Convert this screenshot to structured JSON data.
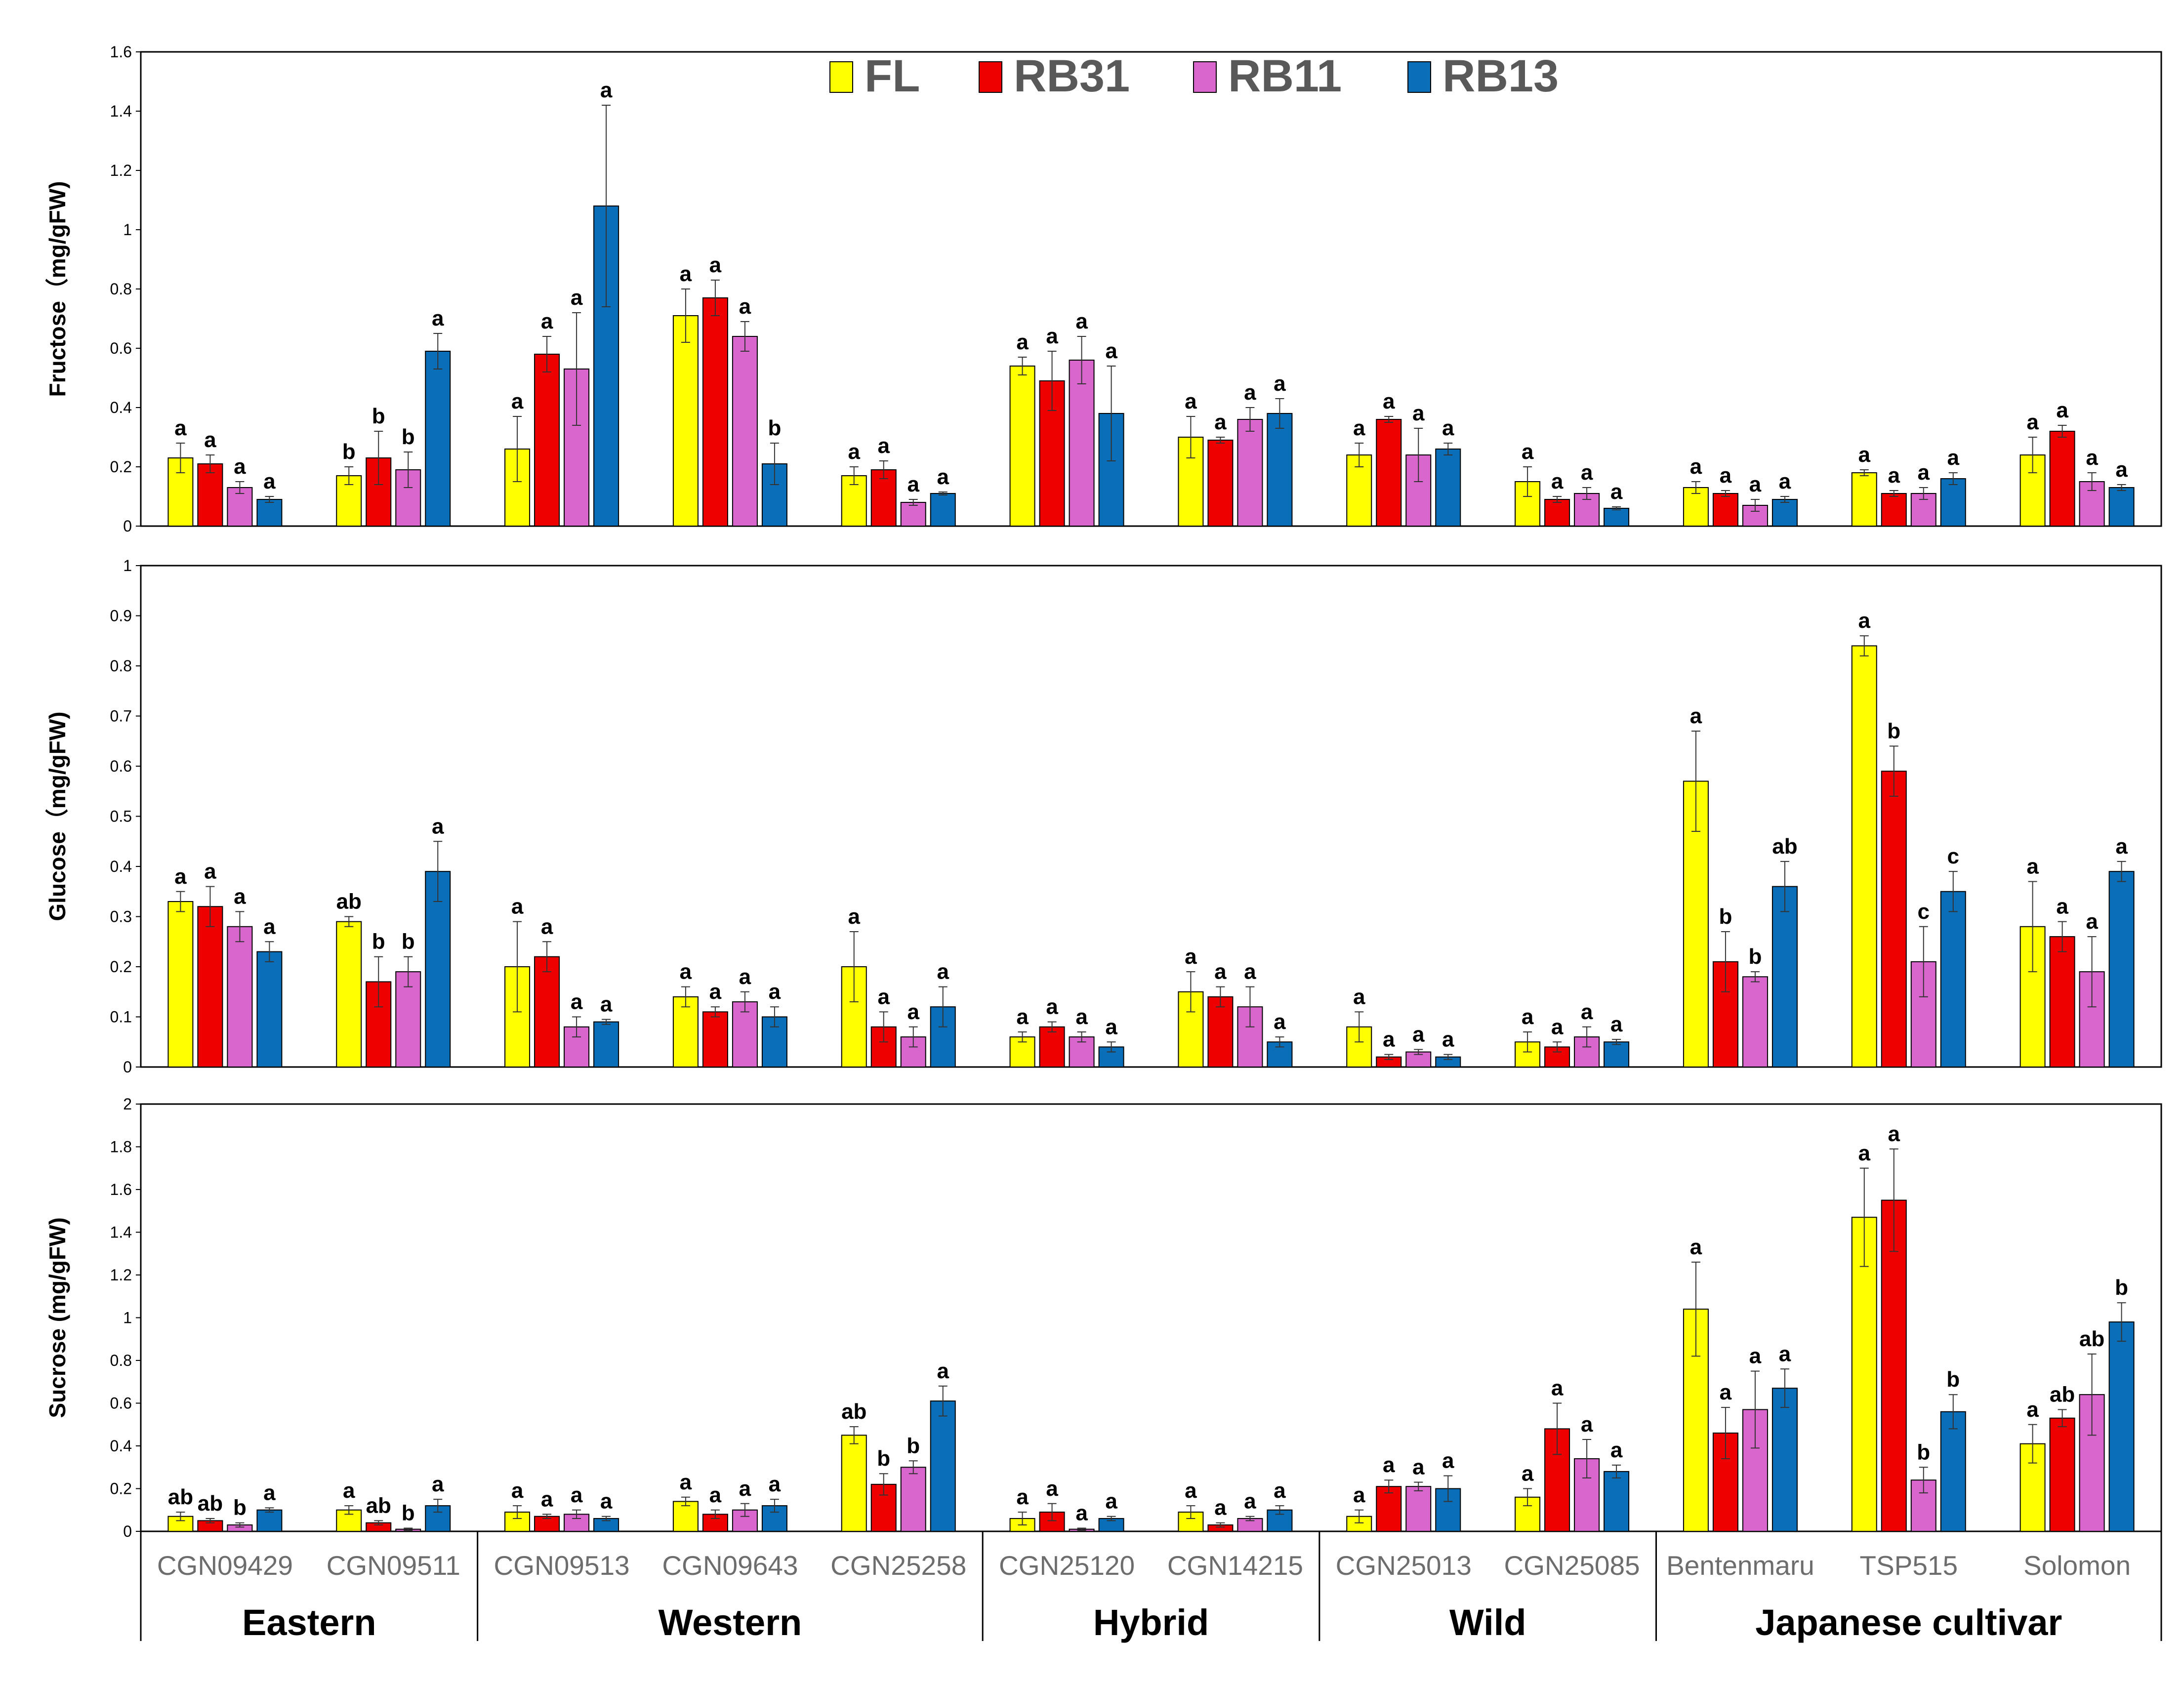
{
  "chart_data": {
    "type": "bar",
    "categories": [
      "CGN09429",
      "CGN09511",
      "CGN09513",
      "CGN09643",
      "CGN25258",
      "CGN25120",
      "CGN14215",
      "CGN25013",
      "CGN25085",
      "Bentenmaru",
      "TSP515",
      "Solomon"
    ],
    "groups": [
      {
        "label": "Eastern",
        "categories": [
          0,
          1
        ]
      },
      {
        "label": "Western",
        "categories": [
          2,
          3,
          4
        ]
      },
      {
        "label": "Hybrid",
        "categories": [
          5,
          6
        ]
      },
      {
        "label": "Wild",
        "categories": [
          7,
          8
        ]
      },
      {
        "label": "Japanese cultivar",
        "categories": [
          9,
          10,
          11
        ]
      }
    ],
    "legend": {
      "placement": "top-center",
      "entries": [
        "FL",
        "RB31",
        "RB11",
        "RB13"
      ]
    },
    "colors": {
      "FL": "#ffff00",
      "RB31": "#ee0000",
      "RB11": "#d966cc",
      "RB13": "#0a6eb8"
    },
    "grid": false,
    "panels": [
      {
        "ylabel": "Fructose（mg/gFW)",
        "ylim": [
          0,
          1.6
        ],
        "yticks": [
          "0",
          "0.2",
          "0.4",
          "0.6",
          "0.8",
          "1",
          "1.2",
          "1.4",
          "1.6"
        ],
        "series": [
          {
            "name": "FL",
            "values": [
              0.23,
              0.17,
              0.26,
              0.71,
              0.17,
              0.54,
              0.3,
              0.24,
              0.15,
              0.13,
              0.18,
              0.24
            ],
            "errors": [
              0.05,
              0.03,
              0.11,
              0.09,
              0.03,
              0.03,
              0.07,
              0.04,
              0.05,
              0.02,
              0.01,
              0.06
            ],
            "letters": [
              "a",
              "b",
              "a",
              "a",
              "a",
              "a",
              "a",
              "a",
              "a",
              "a",
              "a",
              "a"
            ]
          },
          {
            "name": "RB31",
            "values": [
              0.21,
              0.23,
              0.58,
              0.77,
              0.19,
              0.49,
              0.29,
              0.36,
              0.09,
              0.11,
              0.11,
              0.32
            ],
            "errors": [
              0.03,
              0.09,
              0.06,
              0.06,
              0.03,
              0.1,
              0.01,
              0.01,
              0.01,
              0.01,
              0.01,
              0.02
            ],
            "letters": [
              "a",
              "b",
              "a",
              "a",
              "a",
              "a",
              "a",
              "a",
              "a",
              "a",
              "a",
              "a"
            ]
          },
          {
            "name": "RB11",
            "values": [
              0.13,
              0.19,
              0.53,
              0.64,
              0.08,
              0.56,
              0.36,
              0.24,
              0.11,
              0.07,
              0.11,
              0.15
            ],
            "errors": [
              0.02,
              0.06,
              0.19,
              0.05,
              0.01,
              0.08,
              0.04,
              0.09,
              0.02,
              0.02,
              0.02,
              0.03
            ],
            "letters": [
              "a",
              "b",
              "a",
              "a",
              "a",
              "a",
              "a",
              "a",
              "a",
              "a",
              "a",
              "a"
            ]
          },
          {
            "name": "RB13",
            "values": [
              0.09,
              0.59,
              1.08,
              0.21,
              0.11,
              0.38,
              0.38,
              0.26,
              0.06,
              0.09,
              0.16,
              0.13
            ],
            "errors": [
              0.01,
              0.06,
              0.34,
              0.07,
              0.005,
              0.16,
              0.05,
              0.02,
              0.005,
              0.01,
              0.02,
              0.01
            ],
            "letters": [
              "a",
              "a",
              "a",
              "b",
              "a",
              "a",
              "a",
              "a",
              "a",
              "a",
              "a",
              "a"
            ]
          }
        ]
      },
      {
        "ylabel": "Glucose（mg/gFW)",
        "ylim": [
          0,
          1
        ],
        "yticks": [
          "0",
          "0.1",
          "0.2",
          "0.3",
          "0.4",
          "0.5",
          "0.6",
          "0.7",
          "0.8",
          "0.9",
          "1"
        ],
        "series": [
          {
            "name": "FL",
            "values": [
              0.33,
              0.29,
              0.2,
              0.14,
              0.2,
              0.06,
              0.15,
              0.08,
              0.05,
              0.57,
              0.84,
              0.28
            ],
            "errors": [
              0.02,
              0.01,
              0.09,
              0.02,
              0.07,
              0.01,
              0.04,
              0.03,
              0.02,
              0.1,
              0.02,
              0.09
            ],
            "letters": [
              "a",
              "ab",
              "a",
              "a",
              "a",
              "a",
              "a",
              "a",
              "a",
              "a",
              "a",
              "a"
            ]
          },
          {
            "name": "RB31",
            "values": [
              0.32,
              0.17,
              0.22,
              0.11,
              0.08,
              0.08,
              0.14,
              0.02,
              0.04,
              0.21,
              0.59,
              0.26
            ],
            "errors": [
              0.04,
              0.05,
              0.03,
              0.01,
              0.03,
              0.01,
              0.02,
              0.005,
              0.01,
              0.06,
              0.05,
              0.03
            ],
            "letters": [
              "a",
              "b",
              "a",
              "a",
              "a",
              "a",
              "a",
              "a",
              "a",
              "b",
              "b",
              "a"
            ]
          },
          {
            "name": "RB11",
            "values": [
              0.28,
              0.19,
              0.08,
              0.13,
              0.06,
              0.06,
              0.12,
              0.03,
              0.06,
              0.18,
              0.21,
              0.19
            ],
            "errors": [
              0.03,
              0.03,
              0.02,
              0.02,
              0.02,
              0.01,
              0.04,
              0.005,
              0.02,
              0.01,
              0.07,
              0.07
            ],
            "letters": [
              "a",
              "b",
              "a",
              "a",
              "a",
              "a",
              "a",
              "a",
              "a",
              "b",
              "c",
              "a"
            ]
          },
          {
            "name": "RB13",
            "values": [
              0.23,
              0.39,
              0.09,
              0.1,
              0.12,
              0.04,
              0.05,
              0.02,
              0.05,
              0.36,
              0.35,
              0.39
            ],
            "errors": [
              0.02,
              0.06,
              0.005,
              0.02,
              0.04,
              0.01,
              0.01,
              0.005,
              0.005,
              0.05,
              0.04,
              0.02
            ],
            "letters": [
              "a",
              "a",
              "a",
              "a",
              "a",
              "a",
              "a",
              "a",
              "a",
              "ab",
              "c",
              "a"
            ]
          }
        ]
      },
      {
        "ylabel": "Sucrose (mg/gFW)",
        "ylim": [
          0,
          2
        ],
        "yticks": [
          "0",
          "0.2",
          "0.4",
          "0.6",
          "0.8",
          "1",
          "1.2",
          "1.4",
          "1.6",
          "1.8",
          "2"
        ],
        "series": [
          {
            "name": "FL",
            "values": [
              0.07,
              0.1,
              0.09,
              0.14,
              0.45,
              0.06,
              0.09,
              0.07,
              0.16,
              1.04,
              1.47,
              0.41
            ],
            "errors": [
              0.02,
              0.02,
              0.03,
              0.02,
              0.04,
              0.03,
              0.03,
              0.03,
              0.04,
              0.22,
              0.23,
              0.09
            ],
            "letters": [
              "ab",
              "a",
              "a",
              "a",
              "ab",
              "a",
              "a",
              "a",
              "a",
              "a",
              "a",
              "a"
            ]
          },
          {
            "name": "RB31",
            "values": [
              0.05,
              0.04,
              0.07,
              0.08,
              0.22,
              0.09,
              0.03,
              0.21,
              0.48,
              0.46,
              1.55,
              0.53
            ],
            "errors": [
              0.01,
              0.01,
              0.01,
              0.02,
              0.05,
              0.04,
              0.01,
              0.03,
              0.12,
              0.12,
              0.24,
              0.04
            ],
            "letters": [
              "ab",
              "ab",
              "a",
              "a",
              "b",
              "a",
              "a",
              "a",
              "a",
              "a",
              "a",
              "ab"
            ]
          },
          {
            "name": "RB11",
            "values": [
              0.03,
              0.01,
              0.08,
              0.1,
              0.3,
              0.01,
              0.06,
              0.21,
              0.34,
              0.57,
              0.24,
              0.64
            ],
            "errors": [
              0.01,
              0.005,
              0.02,
              0.03,
              0.03,
              0.005,
              0.01,
              0.02,
              0.09,
              0.18,
              0.06,
              0.19
            ],
            "letters": [
              "b",
              "b",
              "a",
              "a",
              "b",
              "a",
              "a",
              "a",
              "a",
              "a",
              "b",
              "ab"
            ]
          },
          {
            "name": "RB13",
            "values": [
              0.1,
              0.12,
              0.06,
              0.12,
              0.61,
              0.06,
              0.1,
              0.2,
              0.28,
              0.67,
              0.56,
              0.98
            ],
            "errors": [
              0.01,
              0.03,
              0.01,
              0.03,
              0.07,
              0.01,
              0.02,
              0.06,
              0.03,
              0.09,
              0.08,
              0.09
            ],
            "letters": [
              "a",
              "a",
              "a",
              "a",
              "a",
              "a",
              "a",
              "a",
              "a",
              "a",
              "b",
              "b"
            ]
          }
        ]
      }
    ]
  }
}
